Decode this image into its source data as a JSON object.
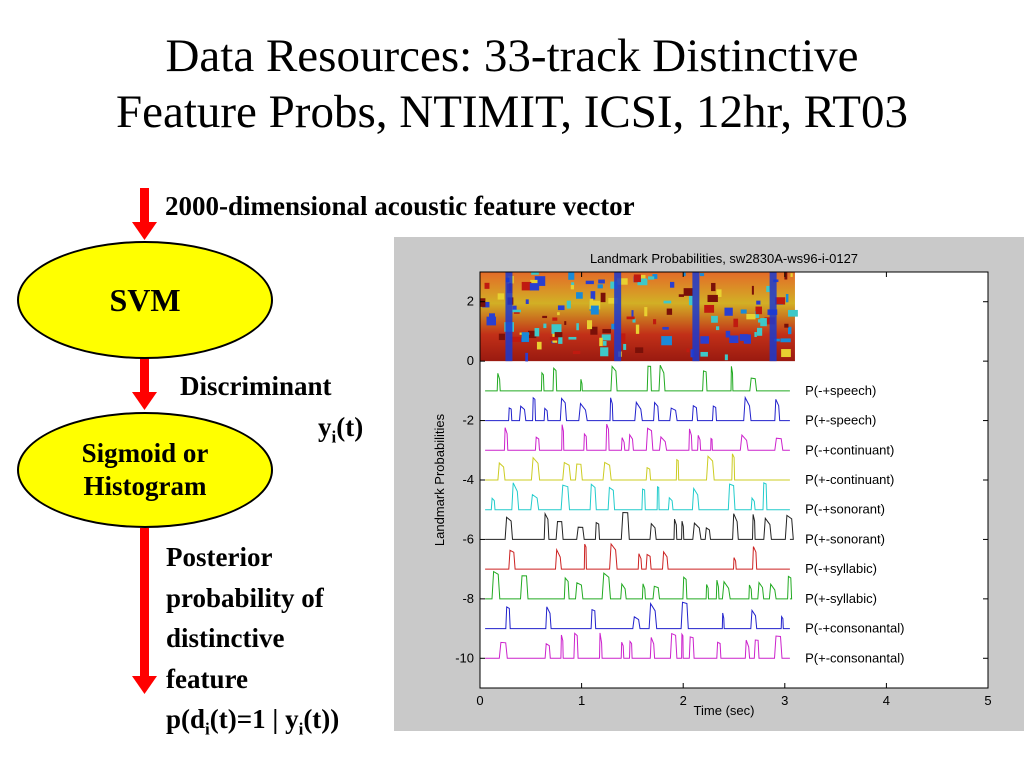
{
  "slide": {
    "title_line1": "Data Resources: 33-track Distinctive",
    "title_line2": "Feature Probs, NTIMIT, ICSI, 12hr, RT03"
  },
  "flow": {
    "input_label": "2000-dimensional acoustic feature vector",
    "svm_label": "SVM",
    "discriminant_label": "Discriminant",
    "discriminant_var": "y",
    "discriminant_sub": "i",
    "discriminant_arg": "(t)",
    "sigmoid_line1": "Sigmoid or",
    "sigmoid_line2": "Histogram",
    "posterior_lines": [
      "Posterior",
      "probability of",
      "distinctive",
      "feature"
    ],
    "formula_p": "p(d",
    "formula_sub1": "i",
    "formula_mid": "(t)=1 | y",
    "formula_sub2": "i",
    "formula_end": "(t))",
    "arrow_color": "#ff0000",
    "ellipse_color": "#ffff00"
  },
  "chart_data": {
    "type": "line",
    "title": "Landmark Probabilities, sw2830A-ws96-i-0127",
    "xlabel": "Time (sec)",
    "ylabel": "Landmark Probabilities",
    "xlim": [
      0,
      5
    ],
    "ylim": [
      -11,
      3
    ],
    "xticks": [
      "0",
      "1",
      "2",
      "3",
      "4",
      "5"
    ],
    "yticks": [
      "2",
      "0",
      "-2",
      "-4",
      "-6",
      "-8",
      "-10"
    ],
    "spectrogram_span": {
      "x": [
        0,
        3.1
      ],
      "y": [
        0,
        3
      ]
    },
    "series": [
      {
        "name": "P(-+speech)",
        "color": "#22aa22",
        "baseline": -1
      },
      {
        "name": "P(+-speech)",
        "color": "#2222cc",
        "baseline": -2
      },
      {
        "name": "P(-+continuant)",
        "color": "#cc22cc",
        "baseline": -3
      },
      {
        "name": "P(+-continuant)",
        "color": "#cccc22",
        "baseline": -4
      },
      {
        "name": "P(-+sonorant)",
        "color": "#22cccc",
        "baseline": -5
      },
      {
        "name": "P(+-sonorant)",
        "color": "#222222",
        "baseline": -6
      },
      {
        "name": "P(-+syllabic)",
        "color": "#cc2222",
        "baseline": -7
      },
      {
        "name": "P(+-syllabic)",
        "color": "#22aa22",
        "baseline": -8
      },
      {
        "name": "P(-+consonantal)",
        "color": "#2222cc",
        "baseline": -9
      },
      {
        "name": "P(+-consonantal)",
        "color": "#cc22cc",
        "baseline": -10
      }
    ]
  }
}
